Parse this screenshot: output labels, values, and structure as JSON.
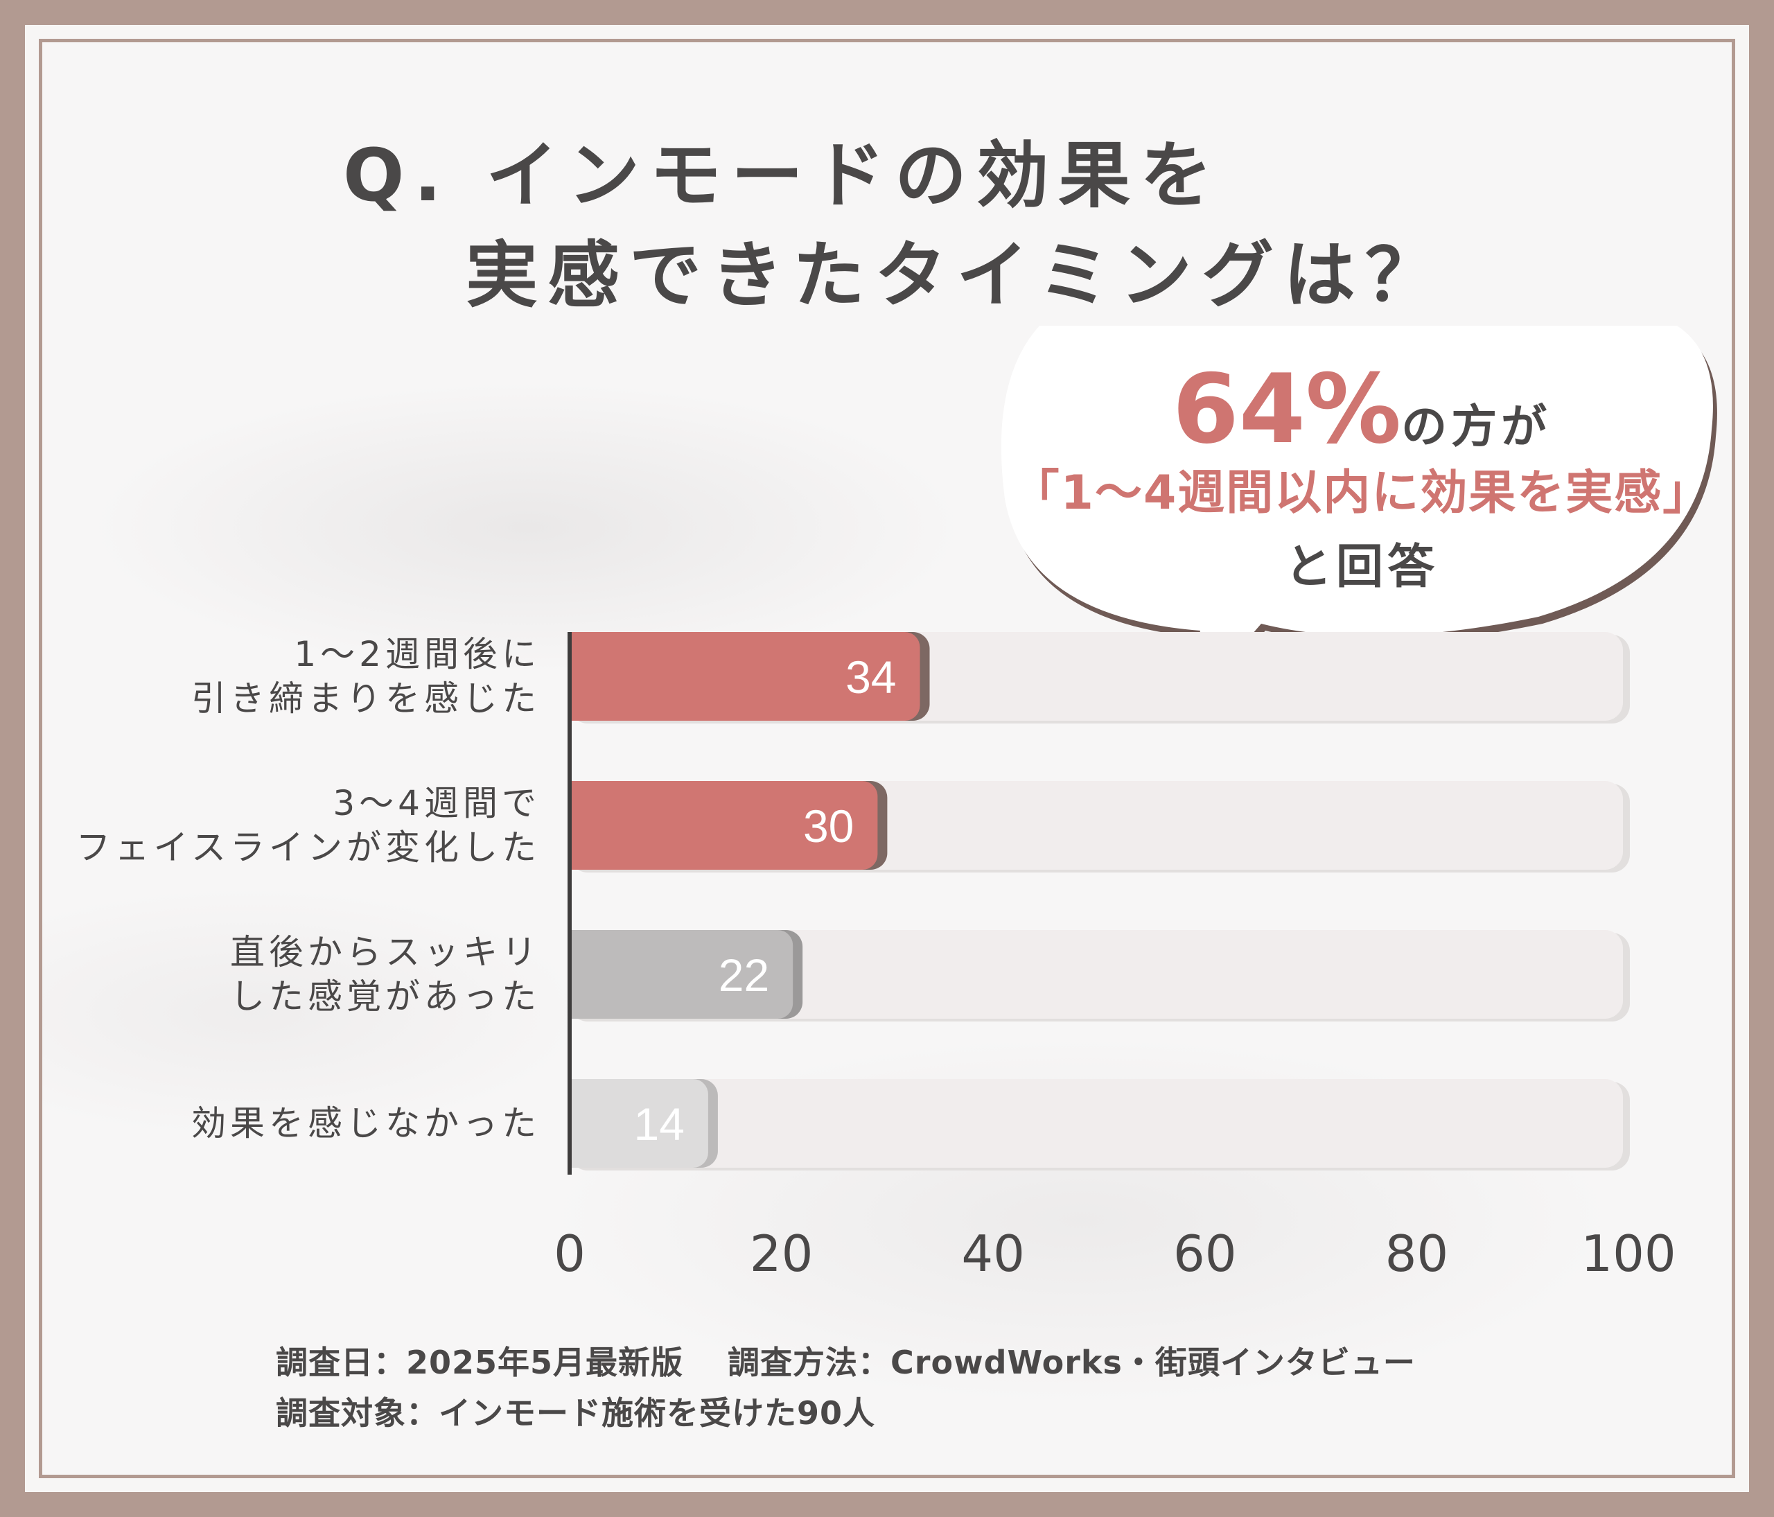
{
  "title_line1": "Q. インモードの効果を",
  "title_line2": "実感できたタイミングは？",
  "callout": {
    "percent": "64%",
    "line1_rest": "の方が",
    "line2": "「1～4週間以内に効果を実感」",
    "line3": "と回答"
  },
  "chart_data": {
    "type": "bar",
    "orientation": "horizontal",
    "categories": [
      [
        "1～2週間後に",
        "引き締まりを感じた"
      ],
      [
        "3～4週間で",
        "フェイスラインが変化した"
      ],
      [
        "直後からスッキリ",
        "した感覚があった"
      ],
      [
        "効果を感じなかった"
      ]
    ],
    "values": [
      34,
      30,
      22,
      14
    ],
    "xlim": [
      0,
      100
    ],
    "xticks": [
      0,
      20,
      40,
      60,
      80,
      100
    ],
    "bar_colors": [
      "#d07672",
      "#d07672",
      "#bdbbbb",
      "#dddcdc"
    ],
    "shadow_colors": [
      "#7d6863",
      "#7d6863",
      "#9b9999",
      "#bcbaba"
    ],
    "track_color": "#f1eded"
  },
  "footer": {
    "survey_date": "調査日：2025年5月最新版",
    "survey_method": "調査方法：CrowdWorks・街頭インタビュー",
    "survey_target": "調査対象：インモード施術を受けた90人"
  },
  "colors": {
    "border": "#b29a91",
    "text": "#4a4848",
    "accent": "#cf7571"
  }
}
